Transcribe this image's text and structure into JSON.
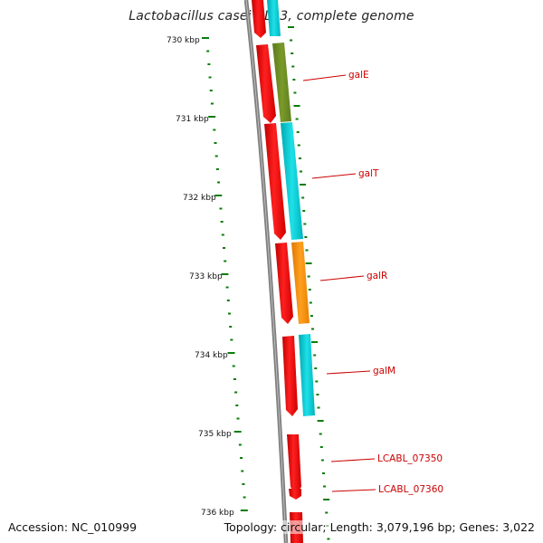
{
  "title": "Lactobacillus casei BL23, complete genome",
  "accession": "Accession: NC_010999",
  "topology": "Topology: circular; Length: 3,079,196 bp; Genes: 3,022",
  "ticks": [
    {
      "label": "730 kbp"
    },
    {
      "label": "731 kbp"
    },
    {
      "label": "732 kbp"
    },
    {
      "label": "733 kbp"
    },
    {
      "label": "734 kbp"
    },
    {
      "label": "735 kbp"
    },
    {
      "label": "736 kbp"
    }
  ],
  "genes": [
    {
      "name": "galE"
    },
    {
      "name": "galT"
    },
    {
      "name": "galR"
    },
    {
      "name": "galM"
    },
    {
      "name": "LCABL_07350"
    },
    {
      "name": "LCABL_07360"
    }
  ],
  "colors": {
    "backbone": "#808080",
    "cds": "#ff0000",
    "cog_teal": "#00cccc",
    "cog_olive": "#6b8e23",
    "cog_orange": "#ff8c00",
    "ticks": "#0a7d0a",
    "label": "#cc0000"
  }
}
